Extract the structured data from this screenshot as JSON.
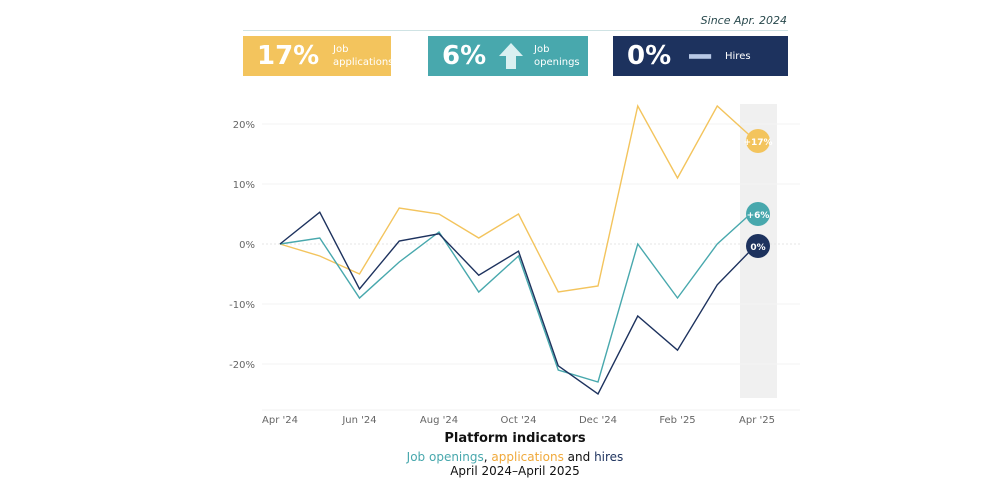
{
  "header": {
    "since": "Since Apr. 2024"
  },
  "cards": [
    {
      "pct": "17%",
      "label1": "Job",
      "label2": "applications",
      "icon": "arrow-up-icon",
      "color": "#f3c45d"
    },
    {
      "pct": "6%",
      "label1": "Job",
      "label2": "openings",
      "icon": "arrow-up-icon",
      "color": "#48a8ad"
    },
    {
      "pct": "0%",
      "label1": "Hires",
      "label2": "",
      "icon": "dash-icon",
      "color": "#1d325e"
    }
  ],
  "chart_data": {
    "type": "line",
    "title": "Platform indicators",
    "subtitle_parts": [
      "Job openings",
      ", ",
      "applications",
      " and ",
      "hires"
    ],
    "subtitle2": "April 2024–April 2025",
    "x": [
      "Apr '24",
      "May '24",
      "Jun '24",
      "Jul '24",
      "Aug '24",
      "Sep '24",
      "Oct '24",
      "Nov '24",
      "Dec '24",
      "Jan '25",
      "Feb '25",
      "Mar '25",
      "Apr '25"
    ],
    "xticks": [
      "Apr '24",
      "Jun '24",
      "Aug '24",
      "Oct '24",
      "Dec '24",
      "Feb '25",
      "Apr '25"
    ],
    "yticks": [
      20,
      10,
      0,
      -10,
      -20
    ],
    "ytick_labels": [
      "20%",
      "10%",
      "0%",
      "-10%",
      "-20%"
    ],
    "ylim": [
      -26,
      24
    ],
    "grid": true,
    "series": [
      {
        "name": "applications",
        "color": "#f3c45d",
        "end_label": "+17%",
        "values": [
          0,
          -2,
          -5,
          6,
          5,
          1,
          5,
          -8,
          -7,
          23,
          11,
          23,
          17
        ]
      },
      {
        "name": "Job openings",
        "color": "#48a8ad",
        "end_label": "+6%",
        "values": [
          0,
          1,
          -9,
          -3,
          2,
          -8,
          -2,
          -21,
          -23,
          0,
          -9,
          0,
          6
        ]
      },
      {
        "name": "hires",
        "color": "#1d325e",
        "end_label": "0%",
        "values": [
          0,
          5.3,
          -7.5,
          0.5,
          1.7,
          -5.2,
          -1.2,
          -20.3,
          -25,
          -12,
          -17.7,
          -6.8,
          0
        ]
      }
    ]
  }
}
